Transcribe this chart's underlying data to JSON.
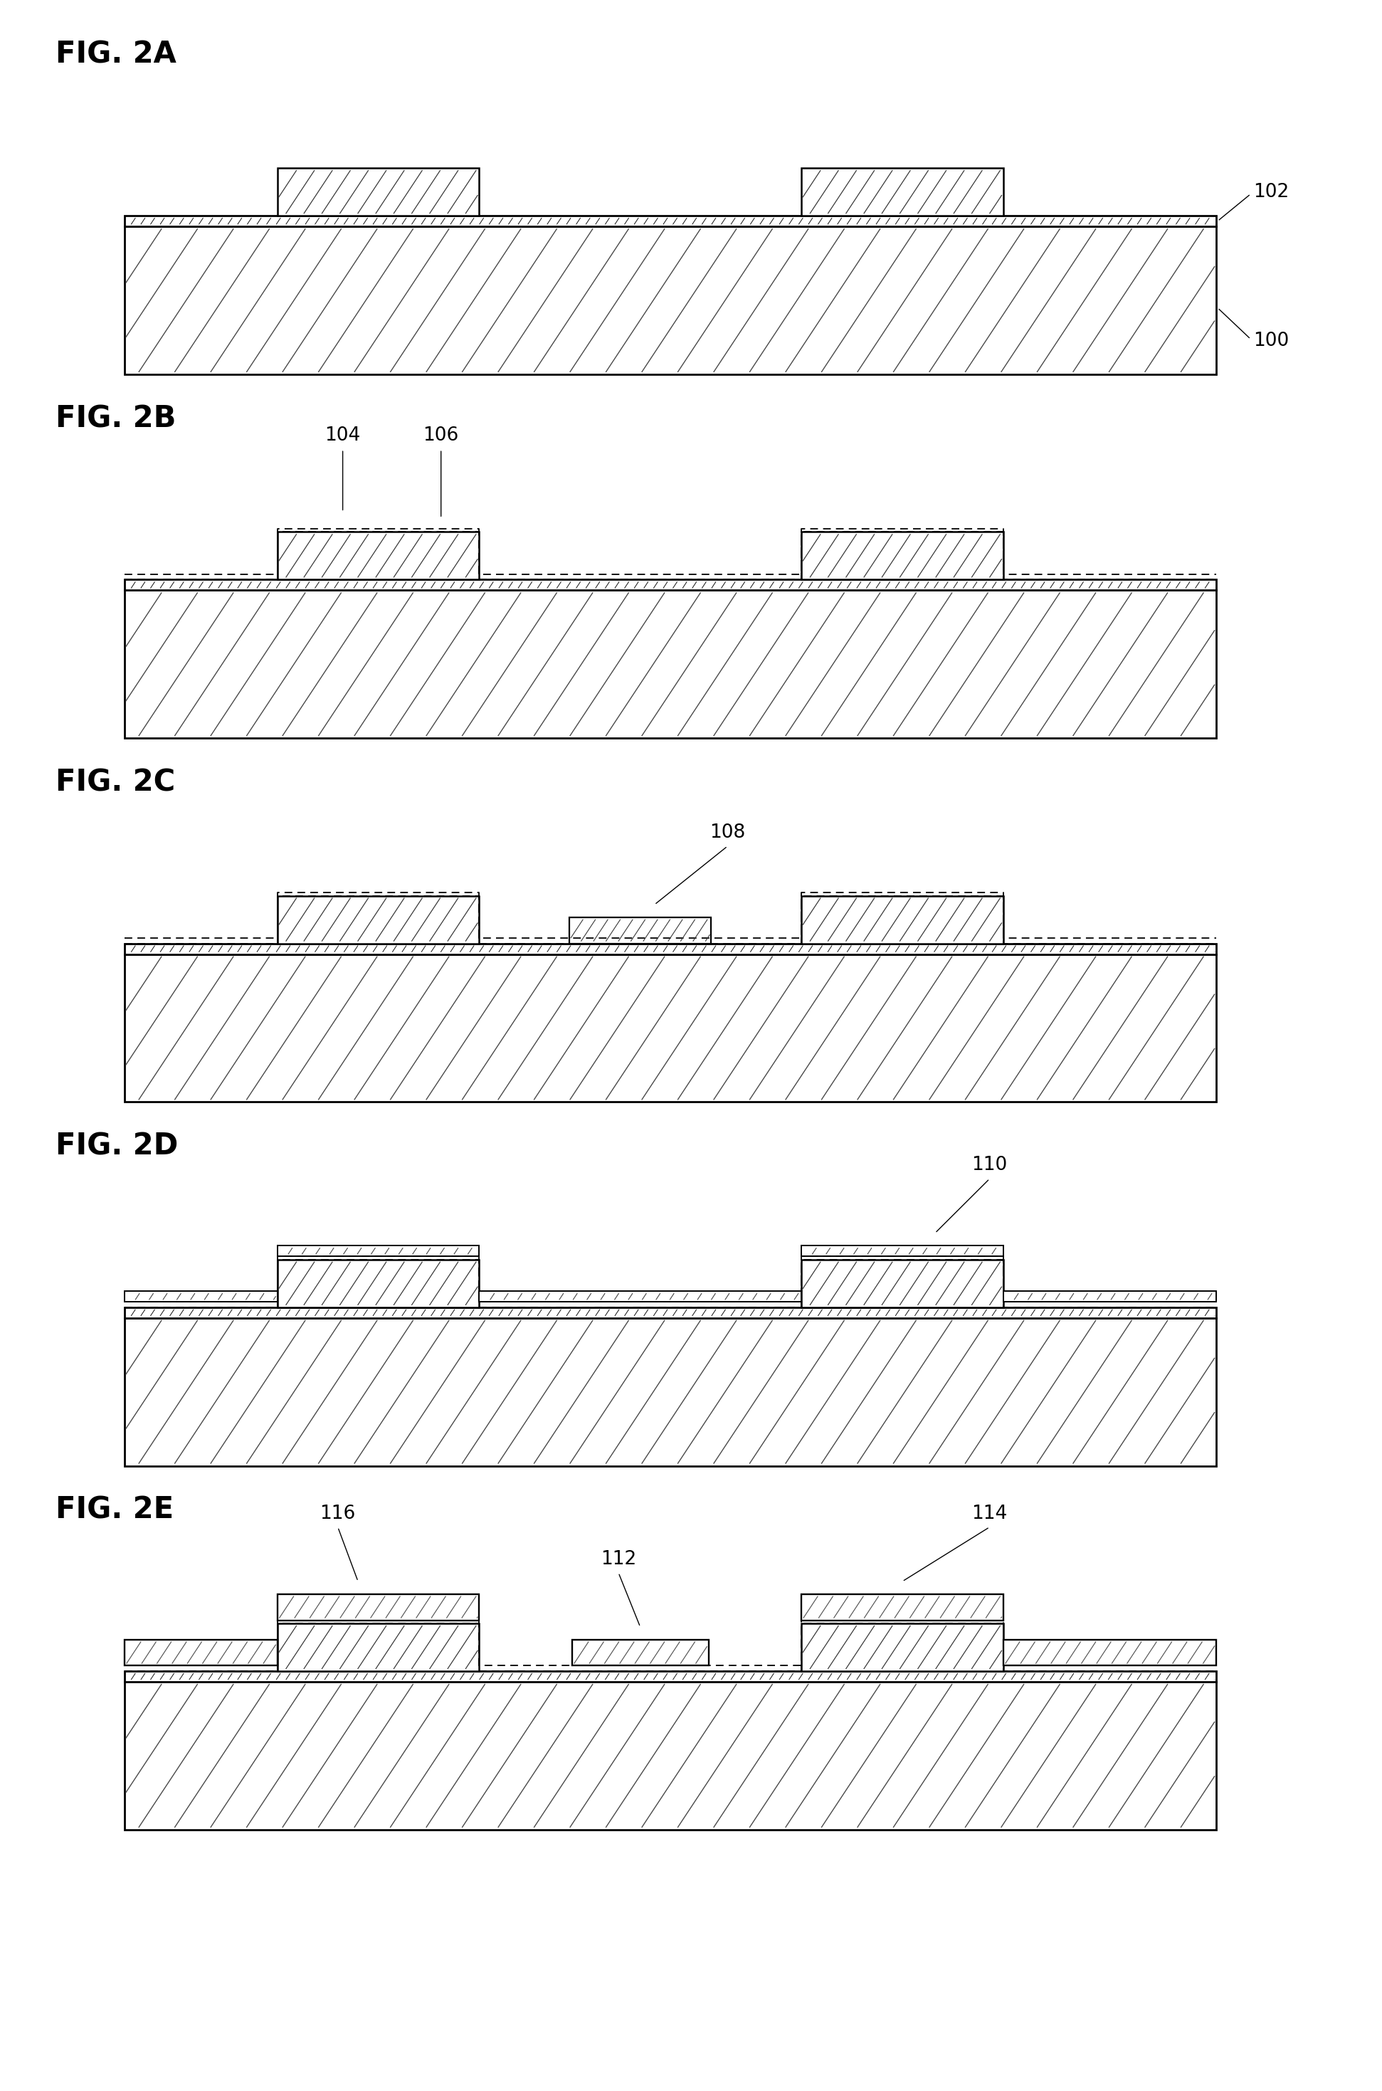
{
  "fig_labels": [
    "FIG. 2A",
    "FIG. 2B",
    "FIG. 2C",
    "FIG. 2D",
    "FIG. 2E"
  ],
  "background": "#ffffff",
  "label_fontsize": 30,
  "annot_fontsize": 19,
  "fig_width": 19.42,
  "fig_height": 29.38,
  "annotations": {
    "2A": [
      [
        "102",
        "right_layer"
      ],
      [
        "100",
        "right_sub"
      ]
    ],
    "2B": [
      [
        "104",
        "top_left"
      ],
      [
        "106",
        "top_mid"
      ]
    ],
    "2C": [
      [
        "108",
        "top_center"
      ]
    ],
    "2D": [
      [
        "110",
        "top_right_bump"
      ]
    ],
    "2E": [
      [
        "116",
        "top_left_block"
      ],
      [
        "112",
        "top_center_block"
      ],
      [
        "114",
        "top_right_block"
      ]
    ]
  }
}
